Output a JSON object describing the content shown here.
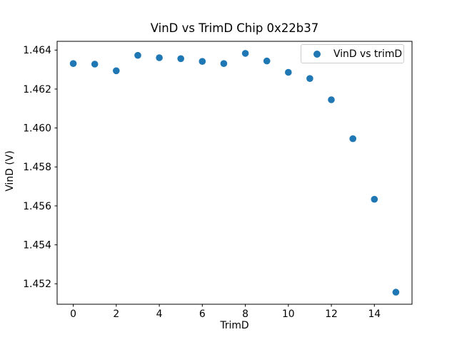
{
  "chart_data": {
    "type": "scatter",
    "title": "VinD vs TrimD Chip 0x22b37",
    "xlabel": "TrimD",
    "ylabel": "VinD (V)",
    "legend_label": "VinD vs trimD",
    "legend_position": "upper right",
    "marker_color": "#1f77b4",
    "axis_color": "#000000",
    "text_color": "#000000",
    "background_color": "#ffffff",
    "grid": false,
    "x": [
      0,
      1,
      2,
      3,
      4,
      5,
      6,
      7,
      8,
      9,
      10,
      11,
      12,
      13,
      14,
      15
    ],
    "y": [
      1.46331,
      1.46328,
      1.46294,
      1.46373,
      1.46361,
      1.46356,
      1.46342,
      1.46331,
      1.46383,
      1.46344,
      1.46286,
      1.46254,
      1.46145,
      1.45945,
      1.45634,
      1.45157
    ],
    "xlim": [
      -0.75,
      15.75
    ],
    "ylim": [
      1.45095,
      1.46445
    ],
    "xticks": [
      0,
      2,
      4,
      6,
      8,
      10,
      12,
      14
    ],
    "xtick_labels": [
      "0",
      "2",
      "4",
      "6",
      "8",
      "10",
      "12",
      "14"
    ],
    "yticks": [
      1.452,
      1.454,
      1.456,
      1.458,
      1.46,
      1.462,
      1.464
    ],
    "ytick_labels": [
      "1.452",
      "1.454",
      "1.456",
      "1.458",
      "1.460",
      "1.462",
      "1.464"
    ]
  }
}
